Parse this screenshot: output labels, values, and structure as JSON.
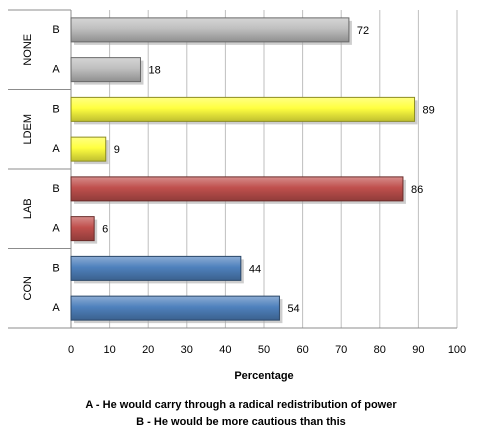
{
  "chart_data": {
    "type": "bar",
    "orientation": "horizontal",
    "xlabel": "Percentage",
    "xlim": [
      0,
      100
    ],
    "xticks": [
      0,
      10,
      20,
      30,
      40,
      50,
      60,
      70,
      80,
      90,
      100
    ],
    "grid": true,
    "groups": [
      {
        "name": "CON",
        "color": "#4f81bd",
        "rows": [
          {
            "label": "A",
            "value": 54
          },
          {
            "label": "B",
            "value": 44
          }
        ]
      },
      {
        "name": "LAB",
        "color": "#c0504d",
        "rows": [
          {
            "label": "A",
            "value": 6
          },
          {
            "label": "B",
            "value": 86
          }
        ]
      },
      {
        "name": "LDEM",
        "color": "#ffff40",
        "rows": [
          {
            "label": "A",
            "value": 9
          },
          {
            "label": "B",
            "value": 89
          }
        ]
      },
      {
        "name": "NONE",
        "color": "#bfbfbf",
        "rows": [
          {
            "label": "A",
            "value": 18
          },
          {
            "label": "B",
            "value": 72
          }
        ]
      }
    ],
    "footnotes": [
      "A - He would carry through a radical redistribution of power",
      "B - He would be more cautious than this"
    ]
  }
}
